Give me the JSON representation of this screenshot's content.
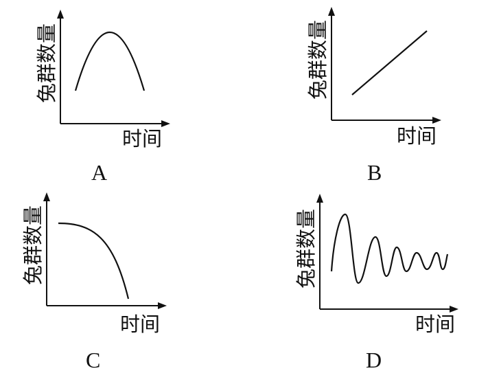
{
  "panels": [
    {
      "label": "A",
      "y_axis_label": "兔群数量",
      "x_axis_label": "时间"
    },
    {
      "label": "B",
      "y_axis_label": "兔群数量",
      "x_axis_label": "时间"
    },
    {
      "label": "C",
      "y_axis_label": "兔群数量",
      "x_axis_label": "时间"
    },
    {
      "label": "D",
      "y_axis_label": "兔群数量",
      "x_axis_label": "时间"
    }
  ]
}
